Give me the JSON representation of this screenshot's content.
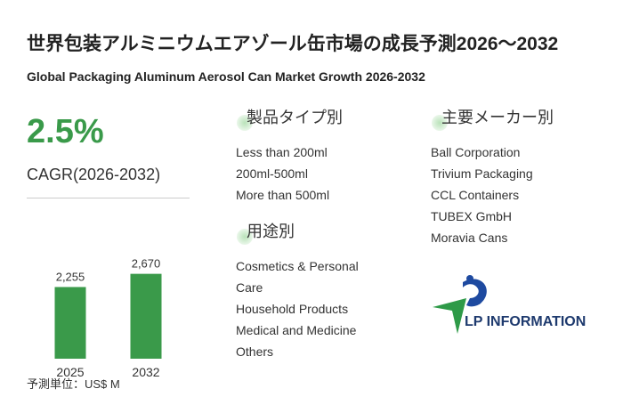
{
  "header": {
    "title": "世界包装アルミニウムエアゾール缶市場の成長予測2026～2032",
    "subtitle": "Global Packaging Aluminum Aerosol Can Market Growth 2026-2032"
  },
  "cagr": {
    "value": "2.5%",
    "label": "CAGR(2026-2032)"
  },
  "chart_data": {
    "type": "bar",
    "categories": [
      "2025",
      "2032"
    ],
    "values": [
      2255,
      2670
    ],
    "value_labels": [
      "2,255",
      "2,670"
    ],
    "color": "#3a9a4a",
    "ylim": [
      0,
      2800
    ],
    "unit": "予測単位：US$ M"
  },
  "segments": [
    {
      "title": "製品タイプ別",
      "items": [
        "Less than 200ml",
        "200ml-500ml",
        "More than 500ml"
      ]
    },
    {
      "title": "用途別",
      "items": [
        "Cosmetics & Personal Care",
        "Household Products",
        "Medical and Medicine",
        "Others"
      ]
    },
    {
      "title": "主要メーカー別",
      "items": [
        "Ball Corporation",
        "Trivium Packaging",
        "CCL Containers",
        "TUBEX GmbH",
        "Moravia Cans"
      ]
    }
  ],
  "logo": {
    "text": "LP INFORMATION"
  }
}
